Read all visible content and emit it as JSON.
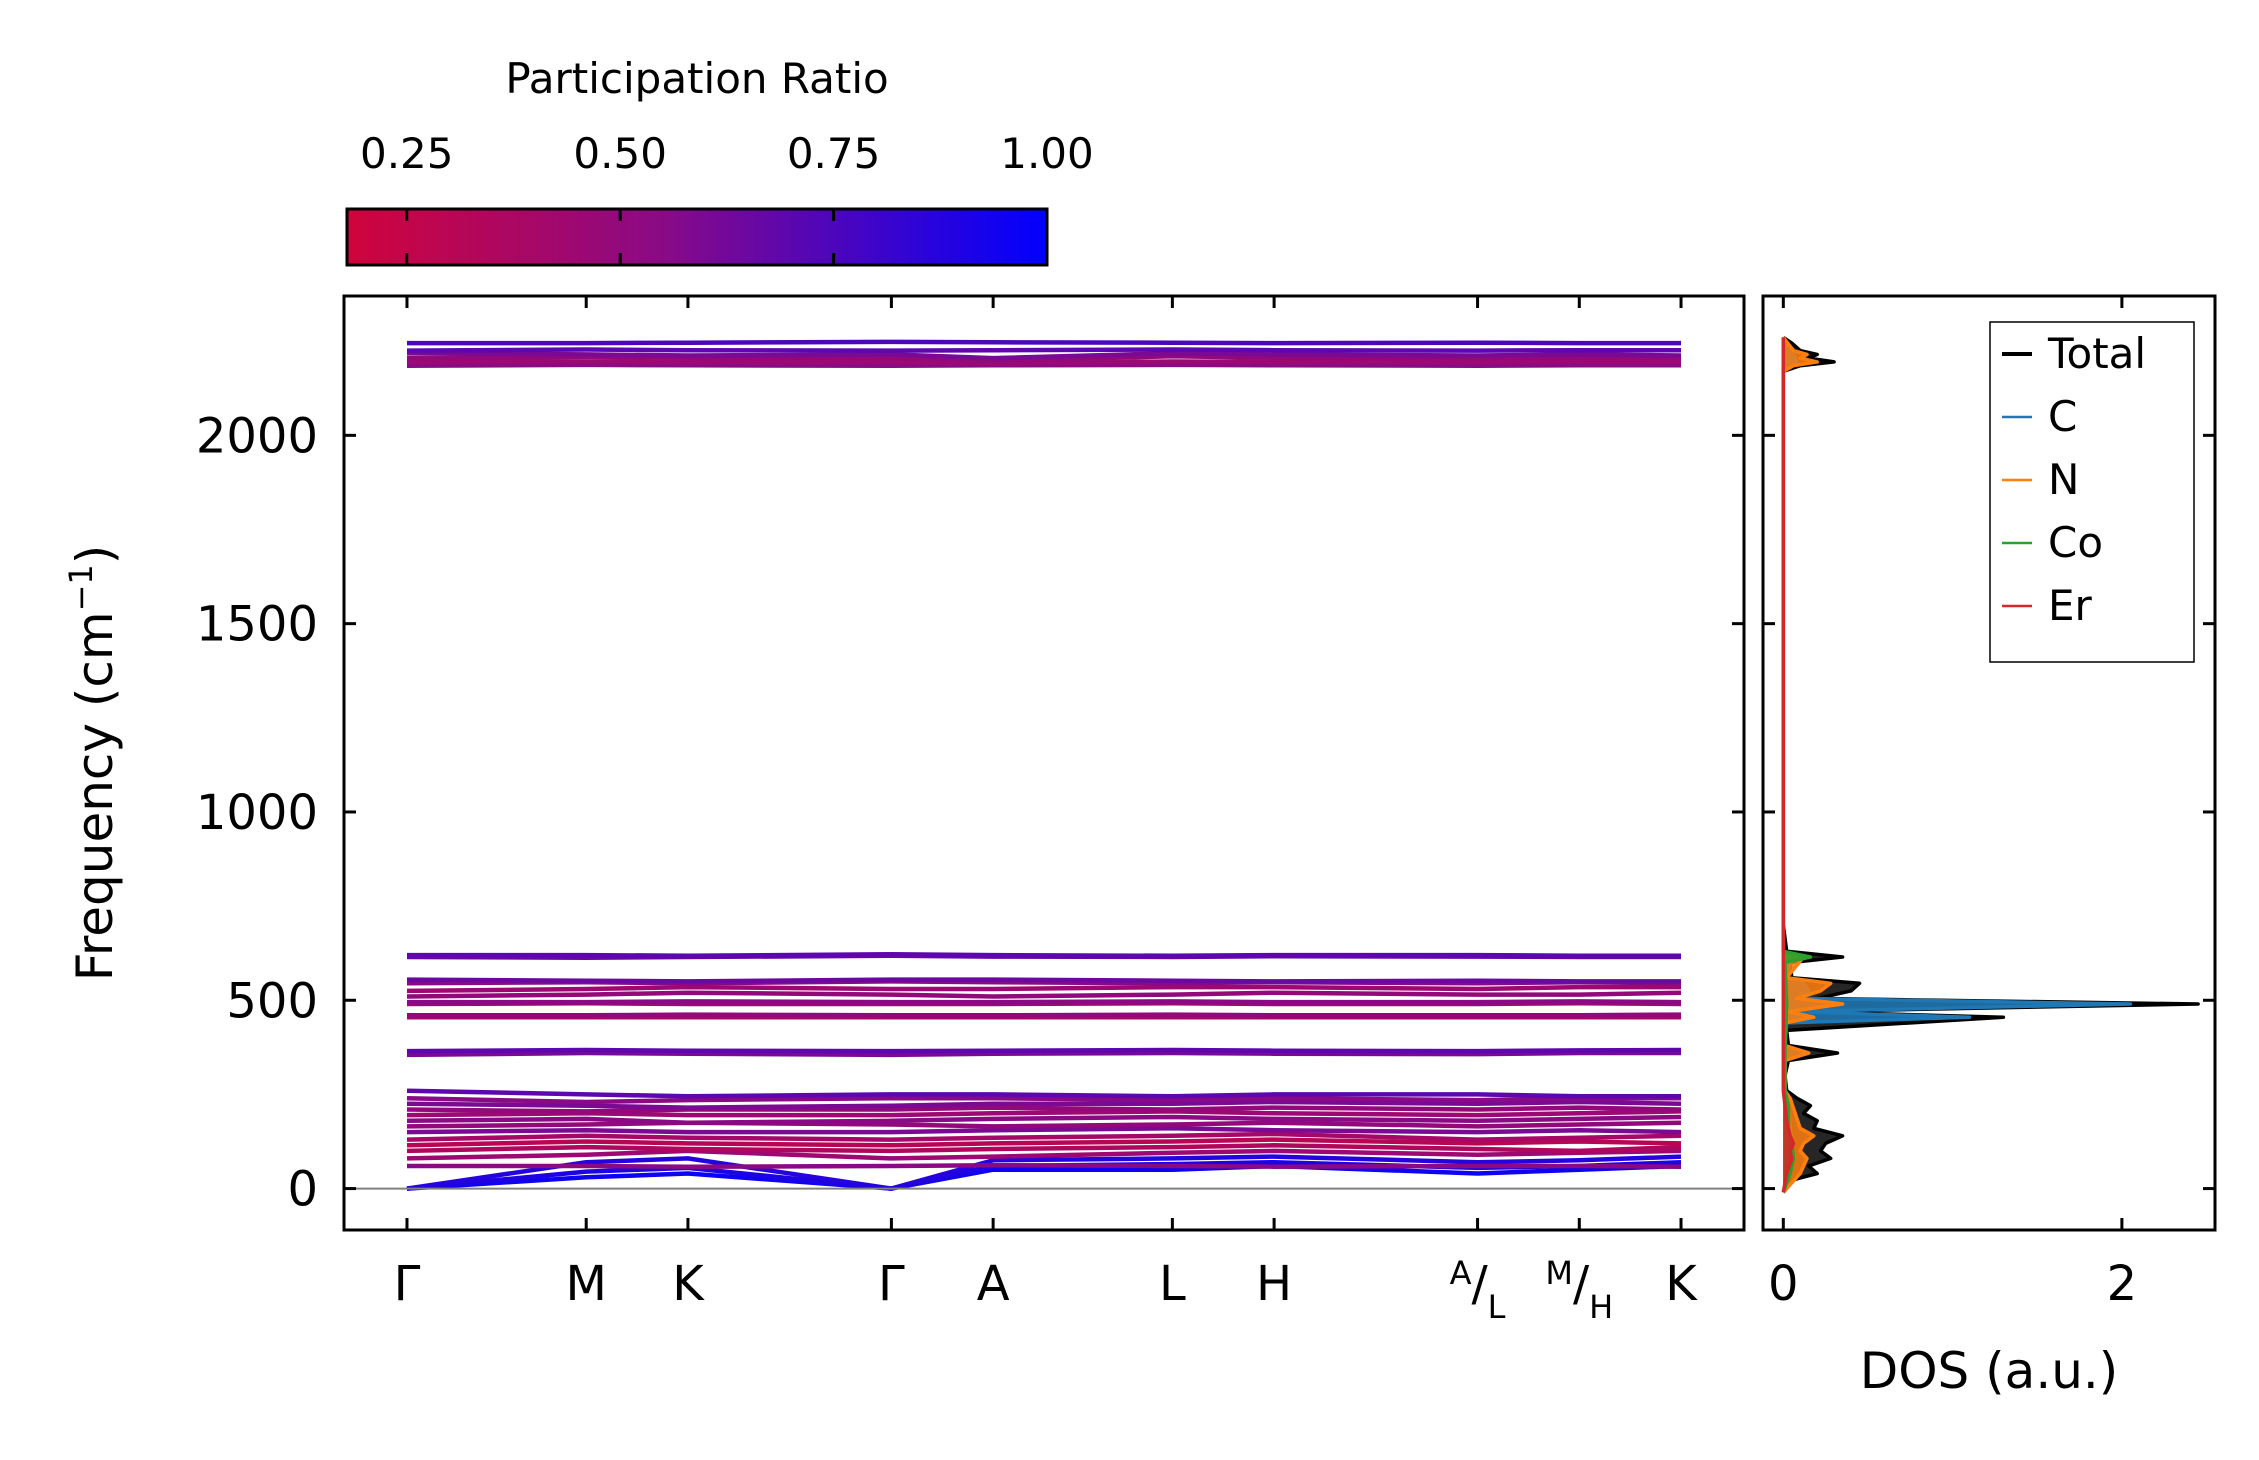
{
  "colorbar": {
    "title": "Participation Ratio",
    "ticks": [
      0.25,
      0.5,
      0.75,
      1.0
    ],
    "tick_labels": [
      "0.25",
      "0.50",
      "0.75",
      "1.00"
    ],
    "range": [
      0.18,
      1.0
    ],
    "color_low": "#d0043c",
    "color_mid": "#8a0a86",
    "color_high": "#0000ff"
  },
  "chart_data": [
    {
      "type": "line",
      "name": "phonon-band-structure",
      "ylabel_main": "Frequency (cm",
      "ylabel_sup": "−1",
      "ylabel_end": ")",
      "ylim": [
        -110,
        2370
      ],
      "y_ticks": [
        0,
        500,
        1000,
        1500,
        2000
      ],
      "y_tick_labels": [
        "0",
        "500",
        "1000",
        "1500",
        "2000"
      ],
      "path_positions": [
        0,
        0.37,
        0.58,
        1.0,
        1.21,
        1.58,
        1.79,
        2.21,
        2.42
      ],
      "x_ticks": [
        {
          "label": "Γ",
          "pos": 0
        },
        {
          "label": "M",
          "pos": 0.37
        },
        {
          "label": "K",
          "pos": 0.58
        },
        {
          "label": "Γ",
          "pos": 1.0
        },
        {
          "label": "A",
          "pos": 1.21
        },
        {
          "label": "L",
          "pos": 1.58
        },
        {
          "label": "H",
          "pos": 1.79
        },
        {
          "label": "A/L",
          "top": "A",
          "slash": "/",
          "bottom": "L",
          "pos": 2.21
        },
        {
          "label": "M/H",
          "top": "M",
          "slash": "/",
          "bottom": "H",
          "pos": 2.42
        },
        {
          "label": "K",
          "pos": 2.63
        }
      ],
      "x_end": 2.63,
      "xlim": [
        -0.13,
        2.76
      ],
      "zero_line": 0,
      "bands": [
        {
          "f": [
            0,
            30,
            40,
            0,
            50,
            50,
            60,
            40,
            50,
            60
          ],
          "pr": 0.95
        },
        {
          "f": [
            0,
            45,
            55,
            0,
            60,
            65,
            70,
            55,
            60,
            70
          ],
          "pr": 0.9
        },
        {
          "f": [
            0,
            70,
            80,
            0,
            75,
            80,
            85,
            70,
            75,
            85
          ],
          "pr": 0.88
        },
        {
          "f": [
            60,
            60,
            58,
            60,
            62,
            60,
            58,
            60,
            60,
            58
          ],
          "pr": 0.55
        },
        {
          "f": [
            80,
            90,
            100,
            80,
            85,
            95,
            100,
            90,
            95,
            100
          ],
          "pr": 0.45
        },
        {
          "f": [
            100,
            110,
            105,
            100,
            105,
            110,
            115,
            105,
            100,
            110
          ],
          "pr": 0.35
        },
        {
          "f": [
            115,
            125,
            120,
            115,
            120,
            125,
            130,
            120,
            125,
            120
          ],
          "pr": 0.3
        },
        {
          "f": [
            130,
            140,
            135,
            130,
            135,
            140,
            145,
            130,
            135,
            140
          ],
          "pr": 0.4
        },
        {
          "f": [
            150,
            155,
            150,
            150,
            155,
            160,
            155,
            150,
            155,
            150
          ],
          "pr": 0.6
        },
        {
          "f": [
            165,
            170,
            175,
            170,
            165,
            170,
            175,
            165,
            170,
            175
          ],
          "pr": 0.5
        },
        {
          "f": [
            180,
            185,
            175,
            180,
            185,
            190,
            185,
            180,
            185,
            190
          ],
          "pr": 0.55
        },
        {
          "f": [
            195,
            200,
            195,
            195,
            200,
            205,
            200,
            195,
            200,
            205
          ],
          "pr": 0.45
        },
        {
          "f": [
            210,
            205,
            210,
            210,
            215,
            210,
            215,
            210,
            215,
            210
          ],
          "pr": 0.5
        },
        {
          "f": [
            225,
            220,
            215,
            220,
            225,
            225,
            230,
            225,
            230,
            225
          ],
          "pr": 0.6
        },
        {
          "f": [
            240,
            230,
            235,
            240,
            240,
            235,
            240,
            235,
            240,
            240
          ],
          "pr": 0.55
        },
        {
          "f": [
            260,
            250,
            245,
            250,
            250,
            245,
            250,
            250,
            245,
            245
          ],
          "pr": 0.7
        },
        {
          "f": [
            355,
            360,
            358,
            355,
            358,
            360,
            358,
            357,
            360,
            360
          ],
          "pr": 0.6
        },
        {
          "f": [
            365,
            368,
            366,
            365,
            366,
            368,
            366,
            365,
            367,
            368
          ],
          "pr": 0.7
        },
        {
          "f": [
            455,
            455,
            455,
            455,
            455,
            455,
            455,
            455,
            455,
            455
          ],
          "pr": 0.4
        },
        {
          "f": [
            460,
            460,
            462,
            460,
            460,
            462,
            460,
            460,
            460,
            462
          ],
          "pr": 0.5
        },
        {
          "f": [
            490,
            492,
            490,
            490,
            490,
            492,
            490,
            490,
            492,
            490
          ],
          "pr": 0.45
        },
        {
          "f": [
            495,
            495,
            497,
            495,
            495,
            497,
            495,
            495,
            497,
            495
          ],
          "pr": 0.55
        },
        {
          "f": [
            510,
            515,
            520,
            515,
            510,
            515,
            520,
            515,
            515,
            520
          ],
          "pr": 0.5
        },
        {
          "f": [
            525,
            530,
            535,
            530,
            530,
            535,
            535,
            530,
            535,
            535
          ],
          "pr": 0.45
        },
        {
          "f": [
            545,
            548,
            545,
            550,
            548,
            545,
            548,
            545,
            548,
            545
          ],
          "pr": 0.55
        },
        {
          "f": [
            555,
            552,
            550,
            555,
            555,
            552,
            550,
            552,
            550,
            550
          ],
          "pr": 0.65
        },
        {
          "f": [
            615,
            613,
            615,
            618,
            616,
            615,
            617,
            616,
            615,
            615
          ],
          "pr": 0.65
        },
        {
          "f": [
            620,
            620,
            618,
            622,
            620,
            618,
            620,
            620,
            618,
            618
          ],
          "pr": 0.7
        },
        {
          "f": [
            2185,
            2187,
            2186,
            2185,
            2186,
            2187,
            2186,
            2185,
            2186,
            2186
          ],
          "pr": 0.55
        },
        {
          "f": [
            2195,
            2196,
            2195,
            2195,
            2192,
            2196,
            2195,
            2195,
            2196,
            2195
          ],
          "pr": 0.45
        },
        {
          "f": [
            2205,
            2208,
            2206,
            2205,
            2198,
            2210,
            2206,
            2205,
            2206,
            2206
          ],
          "pr": 0.5
        },
        {
          "f": [
            2218,
            2215,
            2212,
            2215,
            2205,
            2218,
            2215,
            2212,
            2215,
            2212
          ],
          "pr": 0.6
        },
        {
          "f": [
            2225,
            2228,
            2226,
            2225,
            2226,
            2228,
            2226,
            2225,
            2226,
            2226
          ],
          "pr": 0.7
        },
        {
          "f": [
            2245,
            2245,
            2246,
            2248,
            2247,
            2246,
            2245,
            2246,
            2245,
            2245
          ],
          "pr": 0.75
        }
      ]
    },
    {
      "type": "area",
      "name": "phonon-dos",
      "xlabel": "DOS (a.u.)",
      "xlim": [
        -0.12,
        2.55
      ],
      "ylim": [
        -110,
        2370
      ],
      "x_ticks": [
        0,
        2
      ],
      "x_tick_labels": [
        "0",
        "2"
      ],
      "legend_position": "top-right",
      "series": [
        {
          "name": "Total",
          "color": "#000000",
          "points": [
            [
              -10,
              0
            ],
            [
              0,
              0.02
            ],
            [
              20,
              0.03
            ],
            [
              40,
              0.2
            ],
            [
              60,
              0.15
            ],
            [
              80,
              0.28
            ],
            [
              100,
              0.22
            ],
            [
              120,
              0.25
            ],
            [
              140,
              0.35
            ],
            [
              160,
              0.18
            ],
            [
              180,
              0.2
            ],
            [
              200,
              0.12
            ],
            [
              220,
              0.16
            ],
            [
              240,
              0.08
            ],
            [
              260,
              0.02
            ],
            [
              300,
              0.01
            ],
            [
              340,
              0.03
            ],
            [
              360,
              0.32
            ],
            [
              380,
              0.03
            ],
            [
              420,
              0.02
            ],
            [
              455,
              1.3
            ],
            [
              470,
              0.1
            ],
            [
              490,
              2.45
            ],
            [
              505,
              0.2
            ],
            [
              525,
              0.4
            ],
            [
              545,
              0.45
            ],
            [
              560,
              0.05
            ],
            [
              600,
              0.04
            ],
            [
              615,
              0.35
            ],
            [
              630,
              0.02
            ],
            [
              700,
              0.0
            ],
            [
              2170,
              0.0
            ],
            [
              2185,
              0.1
            ],
            [
              2195,
              0.3
            ],
            [
              2205,
              0.15
            ],
            [
              2215,
              0.2
            ],
            [
              2225,
              0.1
            ],
            [
              2245,
              0.05
            ],
            [
              2260,
              0.0
            ]
          ]
        },
        {
          "name": "C",
          "color": "#1f77b4",
          "points": [
            [
              -10,
              0
            ],
            [
              40,
              0.04
            ],
            [
              80,
              0.06
            ],
            [
              120,
              0.05
            ],
            [
              160,
              0.04
            ],
            [
              220,
              0.03
            ],
            [
              260,
              0.01
            ],
            [
              340,
              0.01
            ],
            [
              360,
              0.15
            ],
            [
              380,
              0.01
            ],
            [
              440,
              0.02
            ],
            [
              455,
              1.1
            ],
            [
              470,
              0.05
            ],
            [
              490,
              2.05
            ],
            [
              505,
              0.1
            ],
            [
              525,
              0.15
            ],
            [
              545,
              0.12
            ],
            [
              560,
              0.02
            ],
            [
              615,
              0.05
            ],
            [
              630,
              0.0
            ],
            [
              2170,
              0.0
            ],
            [
              2195,
              0.08
            ],
            [
              2215,
              0.06
            ],
            [
              2260,
              0.0
            ]
          ]
        },
        {
          "name": "N",
          "color": "#ff7f0e",
          "points": [
            [
              -10,
              0
            ],
            [
              40,
              0.1
            ],
            [
              80,
              0.14
            ],
            [
              100,
              0.1
            ],
            [
              120,
              0.12
            ],
            [
              140,
              0.18
            ],
            [
              160,
              0.1
            ],
            [
              200,
              0.07
            ],
            [
              240,
              0.04
            ],
            [
              260,
              0.01
            ],
            [
              340,
              0.01
            ],
            [
              360,
              0.15
            ],
            [
              380,
              0.01
            ],
            [
              440,
              0.01
            ],
            [
              455,
              0.18
            ],
            [
              470,
              0.03
            ],
            [
              490,
              0.35
            ],
            [
              505,
              0.08
            ],
            [
              525,
              0.22
            ],
            [
              545,
              0.28
            ],
            [
              560,
              0.02
            ],
            [
              615,
              0.12
            ],
            [
              630,
              0.0
            ],
            [
              2170,
              0.0
            ],
            [
              2185,
              0.06
            ],
            [
              2195,
              0.2
            ],
            [
              2205,
              0.1
            ],
            [
              2215,
              0.14
            ],
            [
              2225,
              0.06
            ],
            [
              2260,
              0.0
            ]
          ]
        },
        {
          "name": "Co",
          "color": "#2ca02c",
          "points": [
            [
              -10,
              0
            ],
            [
              40,
              0.04
            ],
            [
              80,
              0.06
            ],
            [
              120,
              0.05
            ],
            [
              160,
              0.03
            ],
            [
              220,
              0.03
            ],
            [
              260,
              0.01
            ],
            [
              360,
              0.01
            ],
            [
              490,
              0.02
            ],
            [
              600,
              0.01
            ],
            [
              615,
              0.16
            ],
            [
              630,
              0.0
            ],
            [
              2260,
              0.0
            ]
          ]
        },
        {
          "name": "Er",
          "color": "#d62728",
          "points": [
            [
              -10,
              0
            ],
            [
              40,
              0.02
            ],
            [
              80,
              0.05
            ],
            [
              100,
              0.04
            ],
            [
              120,
              0.06
            ],
            [
              140,
              0.04
            ],
            [
              180,
              0.02
            ],
            [
              260,
              0.0
            ],
            [
              2260,
              0.0
            ]
          ]
        }
      ]
    }
  ]
}
